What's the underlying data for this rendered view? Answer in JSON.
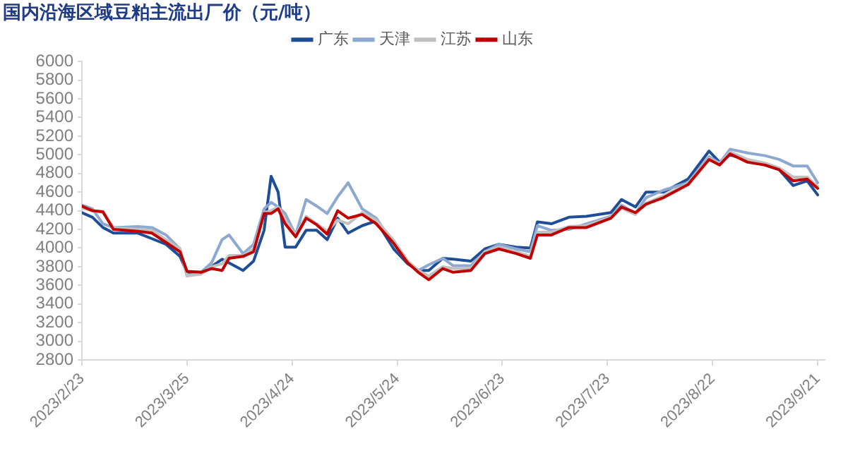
{
  "chart_data": {
    "type": "line",
    "title": "国内沿海区域豆粕主流出厂价（元/吨）",
    "x": [
      "2023-02-23",
      "2023-02-26",
      "2023-03-01",
      "2023-03-04",
      "2023-03-11",
      "2023-03-15",
      "2023-03-19",
      "2023-03-23",
      "2023-03-25",
      "2023-03-29",
      "2023-04-01",
      "2023-04-04",
      "2023-04-06",
      "2023-04-10",
      "2023-04-13",
      "2023-04-16",
      "2023-04-18",
      "2023-04-20",
      "2023-04-22",
      "2023-04-25",
      "2023-04-28",
      "2023-05-01",
      "2023-05-04",
      "2023-05-07",
      "2023-05-10",
      "2023-05-14",
      "2023-05-18",
      "2023-05-23",
      "2023-05-27",
      "2023-05-30",
      "2023-06-02",
      "2023-06-06",
      "2023-06-09",
      "2023-06-14",
      "2023-06-18",
      "2023-06-22",
      "2023-06-27",
      "2023-07-01",
      "2023-07-03",
      "2023-07-07",
      "2023-07-12",
      "2023-07-17",
      "2023-07-24",
      "2023-07-27",
      "2023-07-31",
      "2023-08-03",
      "2023-08-08",
      "2023-08-15",
      "2023-08-21",
      "2023-08-24",
      "2023-08-27",
      "2023-09-01",
      "2023-09-06",
      "2023-09-10",
      "2023-09-14",
      "2023-09-18",
      "2023-09-21"
    ],
    "series": [
      {
        "name": "广东",
        "color": "#1f4e99",
        "values": [
          4380,
          4330,
          4220,
          4160,
          4160,
          4100,
          4040,
          3910,
          3740,
          3740,
          3800,
          3880,
          3840,
          3760,
          3860,
          4190,
          4770,
          4600,
          4010,
          4010,
          4190,
          4190,
          4090,
          4320,
          4160,
          4240,
          4290,
          3990,
          3830,
          3760,
          3760,
          3890,
          3880,
          3860,
          3990,
          4040,
          4010,
          4000,
          4280,
          4260,
          4330,
          4340,
          4380,
          4520,
          4440,
          4600,
          4600,
          4740,
          5040,
          4920,
          5000,
          4940,
          4890,
          4840,
          4670,
          4720,
          4570
        ]
      },
      {
        "name": "天津",
        "color": "#8ea9d1",
        "values": [
          4460,
          4420,
          4260,
          4220,
          4230,
          4220,
          4140,
          3990,
          3700,
          3740,
          3840,
          4090,
          4140,
          3940,
          4040,
          4420,
          4490,
          4440,
          4370,
          4140,
          4520,
          4450,
          4370,
          4550,
          4700,
          4420,
          4320,
          4040,
          3850,
          3760,
          3820,
          3890,
          3810,
          3810,
          3960,
          4040,
          3990,
          3960,
          4240,
          4190,
          4200,
          4260,
          4340,
          4460,
          4370,
          4540,
          4620,
          4700,
          4980,
          4910,
          5060,
          5020,
          4990,
          4950,
          4880,
          4880,
          4700
        ]
      },
      {
        "name": "江苏",
        "color": "#c0c0c0",
        "values": [
          4430,
          4400,
          4380,
          4220,
          4200,
          4190,
          4090,
          3990,
          3700,
          3720,
          3800,
          3830,
          3920,
          3920,
          3990,
          4380,
          4400,
          4440,
          4300,
          4140,
          4340,
          4260,
          4180,
          4300,
          4260,
          4380,
          4300,
          4080,
          3860,
          3760,
          3700,
          3800,
          3780,
          3780,
          3960,
          4010,
          3960,
          3910,
          4170,
          4170,
          4230,
          4240,
          4330,
          4430,
          4360,
          4480,
          4560,
          4690,
          4960,
          4900,
          5030,
          4950,
          4910,
          4860,
          4760,
          4760,
          4660
        ]
      },
      {
        "name": "山东",
        "color": "#c00000",
        "values": [
          4450,
          4400,
          4390,
          4200,
          4180,
          4160,
          4060,
          3960,
          3750,
          3740,
          3780,
          3760,
          3890,
          3910,
          3960,
          4370,
          4370,
          4420,
          4260,
          4120,
          4320,
          4250,
          4150,
          4400,
          4320,
          4360,
          4260,
          4050,
          3840,
          3740,
          3660,
          3780,
          3740,
          3760,
          3940,
          3990,
          3940,
          3890,
          4140,
          4140,
          4220,
          4220,
          4320,
          4440,
          4380,
          4470,
          4540,
          4680,
          4950,
          4890,
          5010,
          4920,
          4890,
          4840,
          4720,
          4740,
          4640
        ]
      }
    ],
    "xlim": [
      "2023-02-23",
      "2023-09-23"
    ],
    "xticks": [
      {
        "value": "2023-02-23",
        "label": "2023/2/23"
      },
      {
        "value": "2023-03-25",
        "label": "2023/3/25"
      },
      {
        "value": "2023-04-24",
        "label": "2023/4/24"
      },
      {
        "value": "2023-05-24",
        "label": "2023/5/24"
      },
      {
        "value": "2023-06-23",
        "label": "2023/6/23"
      },
      {
        "value": "2023-07-23",
        "label": "2023/7/23"
      },
      {
        "value": "2023-08-22",
        "label": "2023/8/22"
      },
      {
        "value": "2023-09-21",
        "label": "2023/9/21"
      }
    ],
    "ylim": [
      2800,
      6000
    ],
    "yticks": [
      2800,
      3000,
      3200,
      3400,
      3600,
      3800,
      4000,
      4200,
      4400,
      4600,
      4800,
      5000,
      5200,
      5400,
      5600,
      5800,
      6000
    ],
    "grid": false,
    "legend": "top",
    "marker": "none",
    "line_style": "solid"
  }
}
